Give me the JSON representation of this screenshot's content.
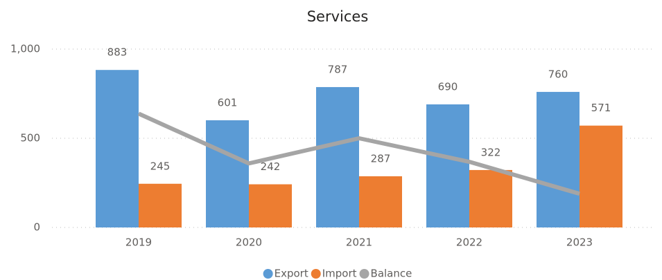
{
  "chart_data": {
    "type": "bar",
    "title": "Services",
    "categories": [
      "2019",
      "2020",
      "2021",
      "2022",
      "2023"
    ],
    "series": [
      {
        "name": "Export",
        "color": "#5b9bd5",
        "type": "bar",
        "values": [
          883,
          601,
          787,
          690,
          760
        ]
      },
      {
        "name": "Import",
        "color": "#ed7d31",
        "type": "bar",
        "values": [
          245,
          242,
          287,
          322,
          571
        ]
      },
      {
        "name": "Balance",
        "color": "#a5a5a5",
        "type": "line",
        "values": [
          638,
          359,
          500,
          368,
          189
        ]
      }
    ],
    "ylim": [
      0,
      1000
    ],
    "yticks": [
      0,
      500,
      {
        "value": 1000,
        "label": "1,000"
      }
    ],
    "grid": true,
    "legend": "bottom"
  }
}
